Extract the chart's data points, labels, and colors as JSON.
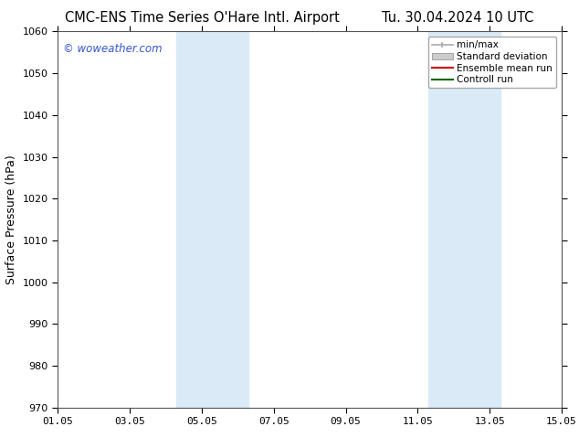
{
  "title_left": "CMC-ENS Time Series O'Hare Intl. Airport",
  "title_right": "Tu. 30.04.2024 10 UTC",
  "ylabel": "Surface Pressure (hPa)",
  "ylim": [
    970,
    1060
  ],
  "yticks": [
    970,
    980,
    990,
    1000,
    1010,
    1020,
    1030,
    1040,
    1050,
    1060
  ],
  "xlim_start": 0,
  "xlim_end": 14,
  "xtick_labels": [
    "01.05",
    "03.05",
    "05.05",
    "07.05",
    "09.05",
    "11.05",
    "13.05",
    "15.05"
  ],
  "xtick_positions": [
    0,
    2,
    4,
    6,
    8,
    10,
    12,
    14
  ],
  "shaded_regions": [
    {
      "xstart": 3.3,
      "xend": 5.3,
      "color": "#daeaf7"
    },
    {
      "xstart": 10.3,
      "xend": 12.3,
      "color": "#daeaf7"
    }
  ],
  "watermark_text": "© woweather.com",
  "watermark_color": "#3355cc",
  "legend_items": [
    {
      "label": "min/max",
      "color": "#aaaaaa",
      "style": "minmax"
    },
    {
      "label": "Standard deviation",
      "color": "#cccccc",
      "style": "stddev"
    },
    {
      "label": "Ensemble mean run",
      "color": "#cc0000",
      "style": "line"
    },
    {
      "label": "Controll run",
      "color": "#006600",
      "style": "line"
    }
  ],
  "bg_color": "#ffffff",
  "title_fontsize": 10.5,
  "label_fontsize": 9,
  "tick_fontsize": 8,
  "watermark_fontsize": 8.5
}
